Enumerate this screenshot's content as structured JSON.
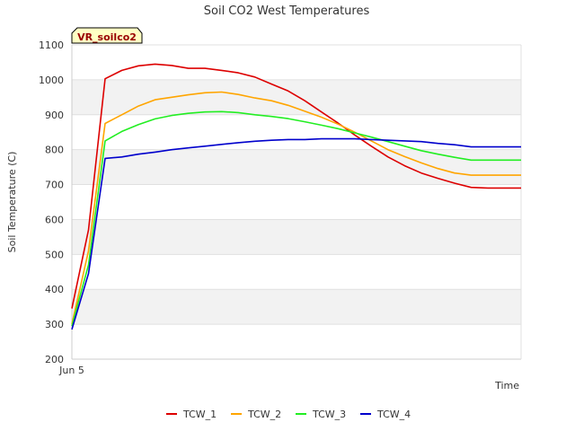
{
  "chart_data": {
    "type": "line",
    "title": "Soil CO2 West Temperatures",
    "xlabel": "Time",
    "ylabel": "Soil Temperature (C)",
    "x_tick_labels": [
      "Jun 5"
    ],
    "ylim": [
      200,
      1100
    ],
    "yticks": [
      200,
      300,
      400,
      500,
      600,
      700,
      800,
      900,
      1000,
      1100
    ],
    "grid": true,
    "legend_placement": "bottom",
    "annotation": "VR_soilco2",
    "x": [
      0,
      1,
      2,
      3,
      4,
      5,
      6,
      7,
      8,
      9,
      10,
      11,
      12,
      13,
      14,
      15,
      16,
      17,
      18,
      19,
      20,
      21,
      22,
      23,
      24,
      25,
      26,
      27
    ],
    "series": [
      {
        "name": "TCW_1",
        "color": "#dd0000",
        "values": [
          345,
          570,
          1003,
          1027,
          1040,
          1045,
          1041,
          1033,
          1033,
          1027,
          1020,
          1008,
          988,
          968,
          940,
          908,
          876,
          842,
          810,
          779,
          754,
          733,
          718,
          704,
          692,
          690,
          690,
          690
        ]
      },
      {
        "name": "TCW_2",
        "color": "#ffa500",
        "values": [
          300,
          510,
          875,
          900,
          925,
          943,
          950,
          957,
          963,
          965,
          958,
          948,
          940,
          927,
          910,
          893,
          873,
          850,
          825,
          800,
          780,
          762,
          746,
          733,
          727,
          727,
          727,
          727
        ]
      },
      {
        "name": "TCW_3",
        "color": "#22ee22",
        "values": [
          295,
          470,
          825,
          852,
          872,
          888,
          898,
          904,
          908,
          909,
          906,
          900,
          895,
          889,
          880,
          870,
          860,
          848,
          836,
          823,
          810,
          797,
          787,
          778,
          770,
          770,
          770,
          770
        ]
      },
      {
        "name": "TCW_4",
        "color": "#0000cc",
        "values": [
          285,
          445,
          775,
          779,
          787,
          793,
          800,
          805,
          810,
          815,
          820,
          824,
          827,
          829,
          829,
          831,
          831,
          831,
          829,
          827,
          825,
          823,
          818,
          814,
          808,
          808,
          808,
          808
        ]
      }
    ]
  }
}
